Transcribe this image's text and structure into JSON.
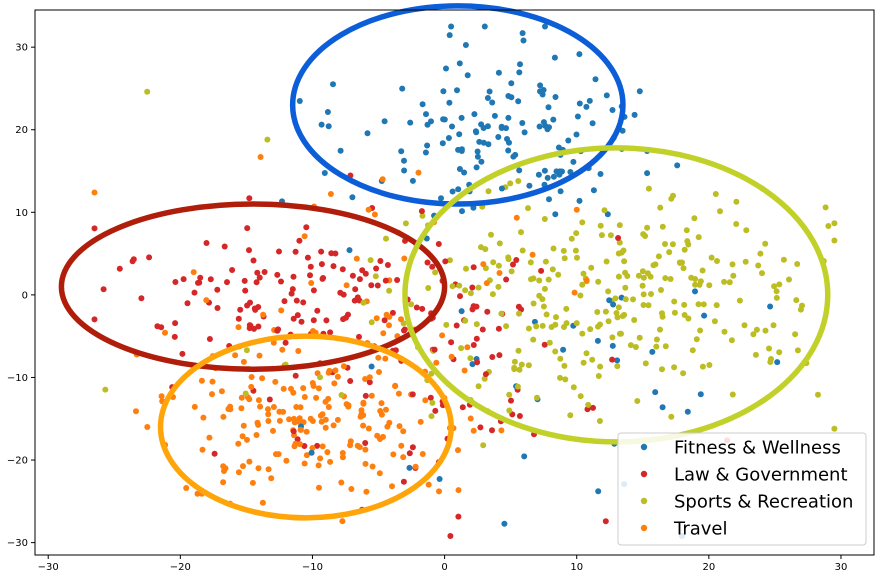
{
  "chart_data": {
    "type": "scatter",
    "title": "",
    "xlabel": "",
    "ylabel": "",
    "xlim": [
      -31,
      32.5
    ],
    "ylim": [
      -31.5,
      34.5
    ],
    "xticks": [
      -30,
      -20,
      -10,
      0,
      10,
      20,
      30
    ],
    "yticks": [
      -30,
      -20,
      -10,
      0,
      10,
      20,
      30
    ],
    "grid": false,
    "legend_position": "bottom-right",
    "series": [
      {
        "name": "Fitness & Wellness",
        "color": "#1f77b4",
        "cluster": {
          "cx": 4,
          "cy": 20,
          "sx": 5.5,
          "sy": 5.5,
          "n": 150
        },
        "scatter": {
          "cx": 5,
          "cy": -8,
          "sx": 10,
          "sy": 10,
          "n": 40
        }
      },
      {
        "name": "Law & Government",
        "color": "#d62728",
        "cluster": {
          "cx": -12,
          "cy": 0,
          "sx": 7,
          "sy": 4.5,
          "n": 130
        },
        "scatter": {
          "cx": 0,
          "cy": -8,
          "sx": 8,
          "sy": 8,
          "n": 80
        }
      },
      {
        "name": "Sports & Recreation",
        "color": "#bcbd22",
        "cluster": {
          "cx": 13,
          "cy": 0,
          "sx": 8,
          "sy": 7,
          "n": 280
        },
        "scatter": {
          "cx": -6,
          "cy": -4,
          "sx": 10,
          "sy": 10,
          "n": 20
        }
      },
      {
        "name": "Travel",
        "color": "#ff7f0e",
        "cluster": {
          "cx": -10,
          "cy": -15,
          "sx": 6,
          "sy": 5,
          "n": 190
        },
        "scatter": {
          "cx": -5,
          "cy": 0,
          "sx": 8,
          "sy": 8,
          "n": 50
        }
      }
    ],
    "annotations": [
      {
        "type": "ellipse",
        "cx": 1,
        "cy": 23,
        "rx": 12.5,
        "ry": 12,
        "color": "#0b5ed7"
      },
      {
        "type": "ellipse",
        "cx": -14.5,
        "cy": 1,
        "rx": 14.5,
        "ry": 10,
        "color": "#b01d0a"
      },
      {
        "type": "ellipse",
        "cx": 13,
        "cy": 0,
        "rx": 16,
        "ry": 17.8,
        "color": "#c2d12a"
      },
      {
        "type": "ellipse",
        "cx": -10.5,
        "cy": -16,
        "rx": 11,
        "ry": 11,
        "color": "#ffa50a"
      }
    ]
  }
}
